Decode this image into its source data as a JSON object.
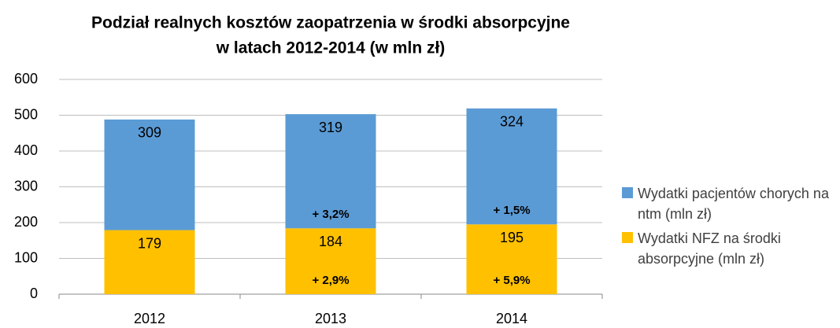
{
  "chart_data": {
    "type": "stacked_bar",
    "title": [
      "Podział realnych kosztów zaopatrzenia w środki absorpcyjne",
      "w latach 2012-2014 (w mln zł)"
    ],
    "categories": [
      "2012",
      "2013",
      "2014"
    ],
    "series": [
      {
        "name": "Wydatki NFZ na środki absorpcyjne (mln zł)",
        "color": "#ffc000",
        "values": [
          179,
          184,
          195
        ],
        "change_labels": [
          null,
          "+ 2,9%",
          "+ 5,9%"
        ]
      },
      {
        "name": "Wydatki pacjentów chorych na ntm (mln zł)",
        "color": "#5b9bd5",
        "values": [
          309,
          319,
          324
        ],
        "change_labels": [
          null,
          "+ 3,2%",
          "+ 1,5%"
        ]
      }
    ],
    "ylim": [
      0,
      600
    ],
    "yticks": [
      0,
      100,
      200,
      300,
      400,
      500,
      600
    ],
    "grid": true,
    "legend": "right"
  }
}
